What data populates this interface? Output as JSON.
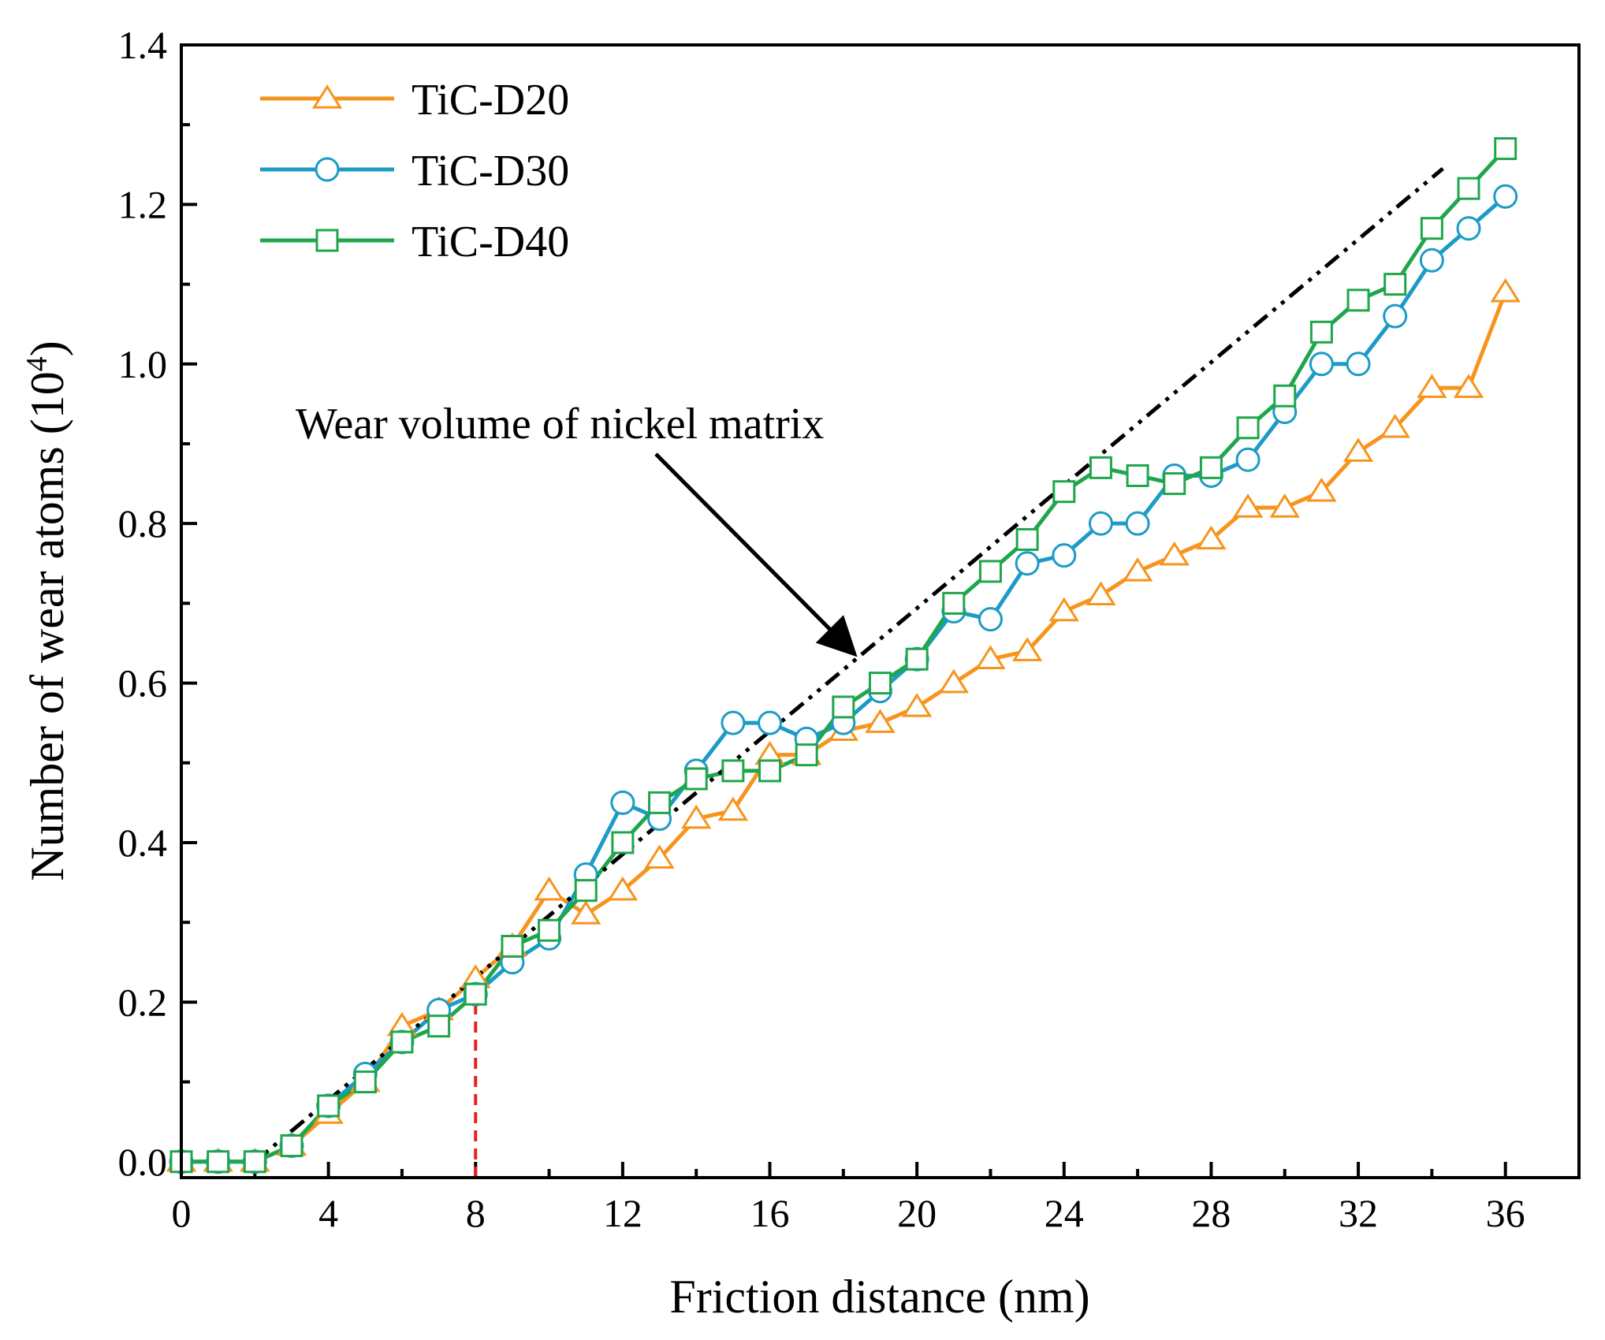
{
  "chart_data": {
    "type": "line",
    "title": "",
    "xlabel": "Friction distance (nm)",
    "ylabel": "Number of wear atoms (10",
    "ylabel_sup": "4",
    "ylabel_end": ")",
    "xlim": [
      0,
      38
    ],
    "ylim": [
      -0.02,
      1.4
    ],
    "xticks": [
      0,
      4,
      8,
      12,
      16,
      20,
      24,
      28,
      32,
      36
    ],
    "xtick_labels": [
      "0",
      "4",
      "8",
      "12",
      "16",
      "20",
      "24",
      "28",
      "32",
      "36"
    ],
    "yticks": [
      0.0,
      0.2,
      0.4,
      0.6,
      0.8,
      1.0,
      1.2,
      1.4
    ],
    "ytick_labels": [
      "0.0",
      "0.2",
      "0.4",
      "0.6",
      "0.8",
      "1.0",
      "1.2",
      "1.4"
    ],
    "x": [
      0,
      1,
      2,
      3,
      4,
      5,
      6,
      7,
      8,
      9,
      10,
      11,
      12,
      13,
      14,
      15,
      16,
      17,
      18,
      19,
      20,
      21,
      22,
      23,
      24,
      25,
      26,
      27,
      28,
      29,
      30,
      31,
      32,
      33,
      34,
      35,
      36
    ],
    "series": [
      {
        "name": "TiC-D20",
        "color": "#F7941D",
        "marker": "triangle",
        "values": [
          0.0,
          0.0,
          0.0,
          0.02,
          0.06,
          0.1,
          0.17,
          0.19,
          0.23,
          0.27,
          0.34,
          0.31,
          0.34,
          0.38,
          0.43,
          0.44,
          0.51,
          0.51,
          0.54,
          0.55,
          0.57,
          0.6,
          0.63,
          0.64,
          0.69,
          0.71,
          0.74,
          0.76,
          0.78,
          0.82,
          0.82,
          0.84,
          0.89,
          0.92,
          0.97,
          0.97,
          1.09
        ]
      },
      {
        "name": "TiC-D30",
        "color": "#1B9BC6",
        "marker": "circle",
        "values": [
          0.0,
          0.0,
          0.0,
          0.02,
          0.07,
          0.11,
          0.15,
          0.19,
          0.21,
          0.25,
          0.28,
          0.36,
          0.45,
          0.43,
          0.49,
          0.55,
          0.55,
          0.53,
          0.55,
          0.59,
          0.63,
          0.69,
          0.68,
          0.75,
          0.76,
          0.8,
          0.8,
          0.86,
          0.86,
          0.88,
          0.94,
          1.0,
          1.0,
          1.06,
          1.13,
          1.17,
          1.21
        ]
      },
      {
        "name": "TiC-D40",
        "color": "#1FA64C",
        "marker": "square",
        "values": [
          0.0,
          0.0,
          0.0,
          0.02,
          0.07,
          0.1,
          0.15,
          0.17,
          0.21,
          0.27,
          0.29,
          0.34,
          0.4,
          0.45,
          0.48,
          0.49,
          0.49,
          0.51,
          0.57,
          0.6,
          0.63,
          0.7,
          0.74,
          0.78,
          0.84,
          0.87,
          0.86,
          0.85,
          0.87,
          0.92,
          0.96,
          1.04,
          1.08,
          1.1,
          1.17,
          1.22,
          1.27
        ]
      }
    ],
    "reference_line": {
      "name": "Wear volume of nickel matrix",
      "color": "#000000",
      "style": "dash-dot",
      "points": [
        [
          2,
          0.0
        ],
        [
          34.3,
          1.245
        ]
      ]
    },
    "marker_line": {
      "color": "#E8201E",
      "x": 8,
      "y_top": 0.23
    },
    "annotation": {
      "text": "Wear volume of nickel matrix",
      "arrow_to": [
        18.4,
        0.63
      ]
    },
    "legend_position": "top-left"
  }
}
